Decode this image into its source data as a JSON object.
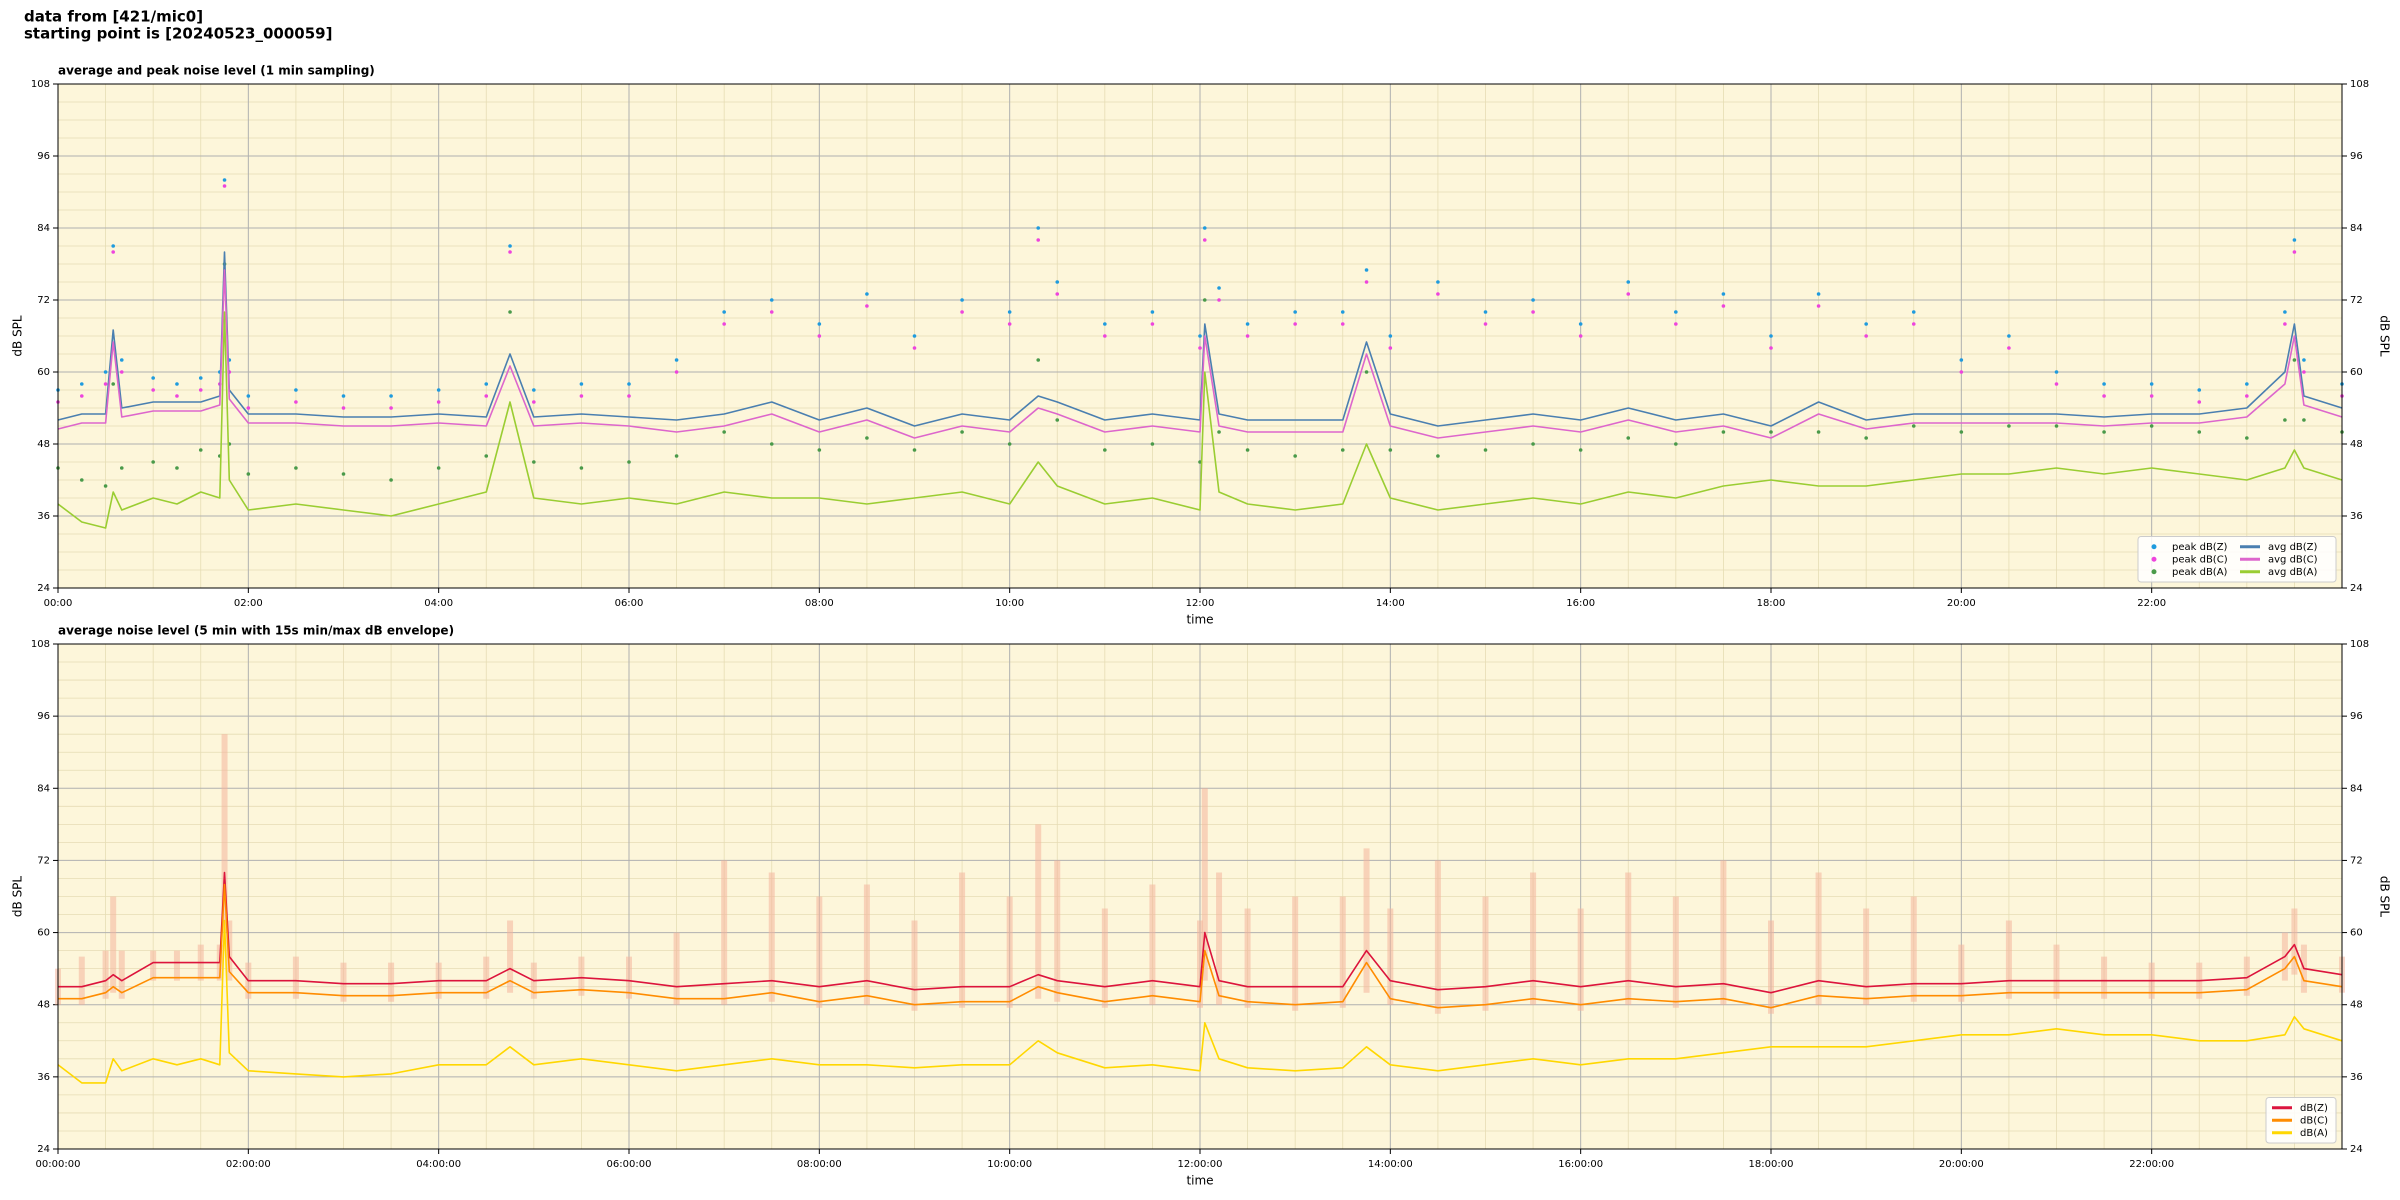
{
  "header": {
    "lines": [
      "data from [421/mic0]",
      "starting point is [20240523_000059]"
    ]
  },
  "chart_data": [
    {
      "type": "line",
      "title": "average and peak noise level (1 min sampling)",
      "xlabel": "time",
      "ylabel": "dB SPL",
      "facecolor": "#fdf6da",
      "grid": true,
      "minor_grid": true,
      "xminor": 4,
      "yminor": 4,
      "legend": "lower right",
      "legend_columns": 2,
      "xlim": [
        0,
        24
      ],
      "ylim": [
        24,
        108
      ],
      "xticks": [
        {
          "value": 0,
          "label": "00:00"
        },
        {
          "value": 2,
          "label": "02:00"
        },
        {
          "value": 4,
          "label": "04:00"
        },
        {
          "value": 6,
          "label": "06:00"
        },
        {
          "value": 8,
          "label": "08:00"
        },
        {
          "value": 10,
          "label": "10:00"
        },
        {
          "value": 12,
          "label": "12:00"
        },
        {
          "value": 14,
          "label": "14:00"
        },
        {
          "value": 16,
          "label": "16:00"
        },
        {
          "value": 18,
          "label": "18:00"
        },
        {
          "value": 20,
          "label": "20:00"
        },
        {
          "value": 22,
          "label": "22:00"
        }
      ],
      "yticks": [
        24,
        36,
        48,
        60,
        72,
        84,
        96,
        108
      ],
      "x": [
        0,
        0.25,
        0.5,
        0.58,
        0.67,
        1,
        1.25,
        1.5,
        1.7,
        1.75,
        1.8,
        2,
        2.5,
        3,
        3.5,
        4,
        4.5,
        4.75,
        5,
        5.5,
        6,
        6.5,
        7,
        7.5,
        8,
        8.5,
        9,
        9.5,
        10,
        10.3,
        10.5,
        11,
        11.5,
        12,
        12.05,
        12.2,
        12.5,
        13,
        13.5,
        13.75,
        14,
        14.5,
        15,
        15.5,
        16,
        16.5,
        17,
        17.5,
        18,
        18.5,
        19,
        19.5,
        20,
        20.5,
        21,
        21.5,
        22,
        22.5,
        23,
        23.4,
        23.5,
        23.6,
        24
      ],
      "series": [
        {
          "name": "peak dB(Z)",
          "type": "scatter",
          "color": "#1f9bde",
          "values": [
            57,
            58,
            60,
            81,
            62,
            59,
            58,
            59,
            60,
            92,
            62,
            56,
            57,
            56,
            56,
            57,
            58,
            81,
            57,
            58,
            58,
            62,
            70,
            72,
            68,
            73,
            66,
            72,
            70,
            84,
            75,
            68,
            70,
            66,
            84,
            74,
            68,
            70,
            70,
            77,
            66,
            75,
            70,
            72,
            68,
            75,
            70,
            73,
            66,
            73,
            68,
            70,
            62,
            66,
            60,
            58,
            58,
            57,
            58,
            70,
            82,
            62,
            58
          ]
        },
        {
          "name": "peak dB(C)",
          "type": "scatter",
          "color": "#ee44dd",
          "values": [
            55,
            56,
            58,
            80,
            60,
            57,
            56,
            57,
            58,
            91,
            60,
            54,
            55,
            54,
            54,
            55,
            56,
            80,
            55,
            56,
            56,
            60,
            68,
            70,
            66,
            71,
            64,
            70,
            68,
            82,
            73,
            66,
            68,
            64,
            82,
            72,
            66,
            68,
            68,
            75,
            64,
            73,
            68,
            70,
            66,
            73,
            68,
            71,
            64,
            71,
            66,
            68,
            60,
            64,
            58,
            56,
            56,
            55,
            56,
            68,
            80,
            60,
            56
          ]
        },
        {
          "name": "peak dB(A)",
          "type": "scatter",
          "color": "#4a9a4a",
          "values": [
            44,
            42,
            41,
            58,
            44,
            45,
            44,
            47,
            46,
            78,
            48,
            43,
            44,
            43,
            42,
            44,
            46,
            70,
            45,
            44,
            45,
            46,
            50,
            48,
            47,
            49,
            47,
            50,
            48,
            62,
            52,
            47,
            48,
            45,
            72,
            50,
            47,
            46,
            47,
            60,
            47,
            46,
            47,
            48,
            47,
            49,
            48,
            50,
            50,
            50,
            49,
            51,
            50,
            51,
            51,
            50,
            51,
            50,
            49,
            52,
            62,
            52,
            50
          ]
        },
        {
          "name": "avg dB(Z)",
          "type": "line",
          "color": "#4a7fb0",
          "values": [
            52,
            53,
            53,
            67,
            54,
            55,
            55,
            55,
            56,
            80,
            57,
            53,
            53,
            52.5,
            52.5,
            53,
            52.5,
            63,
            52.5,
            53,
            52.5,
            52,
            53,
            55,
            52,
            54,
            51,
            53,
            52,
            56,
            55,
            52,
            53,
            52,
            68,
            53,
            52,
            52,
            52,
            65,
            53,
            51,
            52,
            53,
            52,
            54,
            52,
            53,
            51,
            55,
            52,
            53,
            53,
            53,
            53,
            52.5,
            53,
            53,
            54,
            60,
            68,
            56,
            54
          ]
        },
        {
          "name": "avg dB(C)",
          "type": "line",
          "color": "#dd66cc",
          "values": [
            50.5,
            51.5,
            51.5,
            65,
            52.5,
            53.5,
            53.5,
            53.5,
            54.5,
            77,
            55.5,
            51.5,
            51.5,
            51,
            51,
            51.5,
            51,
            61,
            51,
            51.5,
            51,
            50,
            51,
            53,
            50,
            52,
            49,
            51,
            50,
            54,
            53,
            50,
            51,
            50,
            66,
            51,
            50,
            50,
            50,
            63,
            51,
            49,
            50,
            51,
            50,
            52,
            50,
            51,
            49,
            53,
            50.5,
            51.5,
            51.5,
            51.5,
            51.5,
            51,
            51.5,
            51.5,
            52.5,
            58,
            66,
            54.5,
            52.5
          ]
        },
        {
          "name": "avg dB(A)",
          "type": "line",
          "color": "#9acd32",
          "values": [
            38,
            35,
            34,
            40,
            37,
            39,
            38,
            40,
            39,
            70,
            42,
            37,
            38,
            37,
            36,
            38,
            40,
            55,
            39,
            38,
            39,
            38,
            40,
            39,
            39,
            38,
            39,
            40,
            38,
            45,
            41,
            38,
            39,
            37,
            60,
            40,
            38,
            37,
            38,
            48,
            39,
            37,
            38,
            39,
            38,
            40,
            39,
            41,
            42,
            41,
            41,
            42,
            43,
            43,
            44,
            43,
            44,
            43,
            42,
            44,
            47,
            44,
            42
          ]
        }
      ]
    },
    {
      "type": "line",
      "title": "average noise level (5 min with 15s min/max dB envelope)",
      "xlabel": "time",
      "ylabel": "dB SPL",
      "facecolor": "#fdf6da",
      "grid": true,
      "minor_grid": true,
      "xminor": 4,
      "yminor": 4,
      "legend": "lower right",
      "legend_columns": 1,
      "xlim": [
        0,
        24
      ],
      "ylim": [
        24,
        108
      ],
      "xticks": [
        {
          "value": 0,
          "label": "00:00:00"
        },
        {
          "value": 2,
          "label": "02:00:00"
        },
        {
          "value": 4,
          "label": "04:00:00"
        },
        {
          "value": 6,
          "label": "06:00:00"
        },
        {
          "value": 8,
          "label": "08:00:00"
        },
        {
          "value": 10,
          "label": "10:00:00"
        },
        {
          "value": 12,
          "label": "12:00:00"
        },
        {
          "value": 14,
          "label": "14:00:00"
        },
        {
          "value": 16,
          "label": "16:00:00"
        },
        {
          "value": 18,
          "label": "18:00:00"
        },
        {
          "value": 20,
          "label": "20:00:00"
        },
        {
          "value": 22,
          "label": "22:00:00"
        }
      ],
      "yticks": [
        24,
        36,
        48,
        60,
        72,
        84,
        96,
        108
      ],
      "x": [
        0,
        0.25,
        0.5,
        0.58,
        0.67,
        1,
        1.25,
        1.5,
        1.7,
        1.75,
        1.8,
        2,
        2.5,
        3,
        3.5,
        4,
        4.5,
        4.75,
        5,
        5.5,
        6,
        6.5,
        7,
        7.5,
        8,
        8.5,
        9,
        9.5,
        10,
        10.3,
        10.5,
        11,
        11.5,
        12,
        12.05,
        12.2,
        12.5,
        13,
        13.5,
        13.75,
        14,
        14.5,
        15,
        15.5,
        16,
        16.5,
        17,
        17.5,
        18,
        18.5,
        19,
        19.5,
        20,
        20.5,
        21,
        21.5,
        22,
        22.5,
        23,
        23.4,
        23.5,
        23.6,
        24
      ],
      "envelope": {
        "color": "#f4b49c",
        "lower": [
          48,
          48,
          49,
          50,
          49,
          52,
          52,
          52,
          52,
          60,
          52,
          49,
          49,
          48.5,
          48.5,
          49,
          49,
          50,
          49,
          49.5,
          49,
          48,
          48,
          48.5,
          47.5,
          48,
          47,
          47.5,
          47.5,
          49,
          48.5,
          47.5,
          48,
          47.5,
          52,
          48,
          47.5,
          47,
          47.5,
          50,
          48,
          46.5,
          47,
          48,
          47,
          48,
          47.5,
          48,
          46.5,
          48,
          48,
          48.5,
          48.5,
          49,
          49,
          49,
          49,
          49,
          49.5,
          52,
          53,
          50,
          50
        ],
        "upper": [
          54,
          56,
          57,
          66,
          57,
          57,
          57,
          58,
          58,
          93,
          62,
          55,
          56,
          55,
          55,
          55,
          56,
          62,
          55,
          56,
          56,
          60,
          72,
          70,
          66,
          68,
          62,
          70,
          66,
          78,
          72,
          64,
          68,
          62,
          84,
          70,
          64,
          66,
          66,
          74,
          64,
          72,
          66,
          70,
          64,
          70,
          66,
          72,
          62,
          70,
          64,
          66,
          58,
          62,
          58,
          56,
          55,
          55,
          56,
          60,
          64,
          58,
          56
        ]
      },
      "series": [
        {
          "name": "dB(Z)",
          "type": "line",
          "color": "#dc143c",
          "values": [
            51,
            51,
            52,
            53,
            52,
            55,
            55,
            55,
            55,
            70,
            56,
            52,
            52,
            51.5,
            51.5,
            52,
            52,
            54,
            52,
            52.5,
            52,
            51,
            51.5,
            52,
            51,
            52,
            50.5,
            51,
            51,
            53,
            52,
            51,
            52,
            51,
            60,
            52,
            51,
            51,
            51,
            57,
            52,
            50.5,
            51,
            52,
            51,
            52,
            51,
            51.5,
            50,
            52,
            51,
            51.5,
            51.5,
            52,
            52,
            52,
            52,
            52,
            52.5,
            56,
            58,
            54,
            53
          ]
        },
        {
          "name": "dB(C)",
          "type": "line",
          "color": "#ff8c00",
          "values": [
            49,
            49,
            50,
            51,
            50,
            52.5,
            52.5,
            52.5,
            52.5,
            68,
            53.5,
            50,
            50,
            49.5,
            49.5,
            50,
            50,
            52,
            50,
            50.5,
            50,
            49,
            49,
            50,
            48.5,
            49.5,
            48,
            48.5,
            48.5,
            51,
            50,
            48.5,
            49.5,
            48.5,
            57,
            49.5,
            48.5,
            48,
            48.5,
            55,
            49,
            47.5,
            48,
            49,
            48,
            49,
            48.5,
            49,
            47.5,
            49.5,
            49,
            49.5,
            49.5,
            50,
            50,
            50,
            50,
            50,
            50.5,
            54,
            56,
            52,
            51
          ]
        },
        {
          "name": "dB(A)",
          "type": "line",
          "color": "#ffd700",
          "values": [
            38,
            35,
            35,
            39,
            37,
            39,
            38,
            39,
            38,
            62,
            40,
            37,
            36.5,
            36,
            36.5,
            38,
            38,
            41,
            38,
            39,
            38,
            37,
            38,
            39,
            38,
            38,
            37.5,
            38,
            38,
            42,
            40,
            37.5,
            38,
            37,
            45,
            39,
            37.5,
            37,
            37.5,
            41,
            38,
            37,
            38,
            39,
            38,
            39,
            39,
            40,
            41,
            41,
            41,
            42,
            43,
            43,
            44,
            43,
            43,
            42,
            42,
            43,
            46,
            44,
            42
          ]
        }
      ]
    }
  ]
}
